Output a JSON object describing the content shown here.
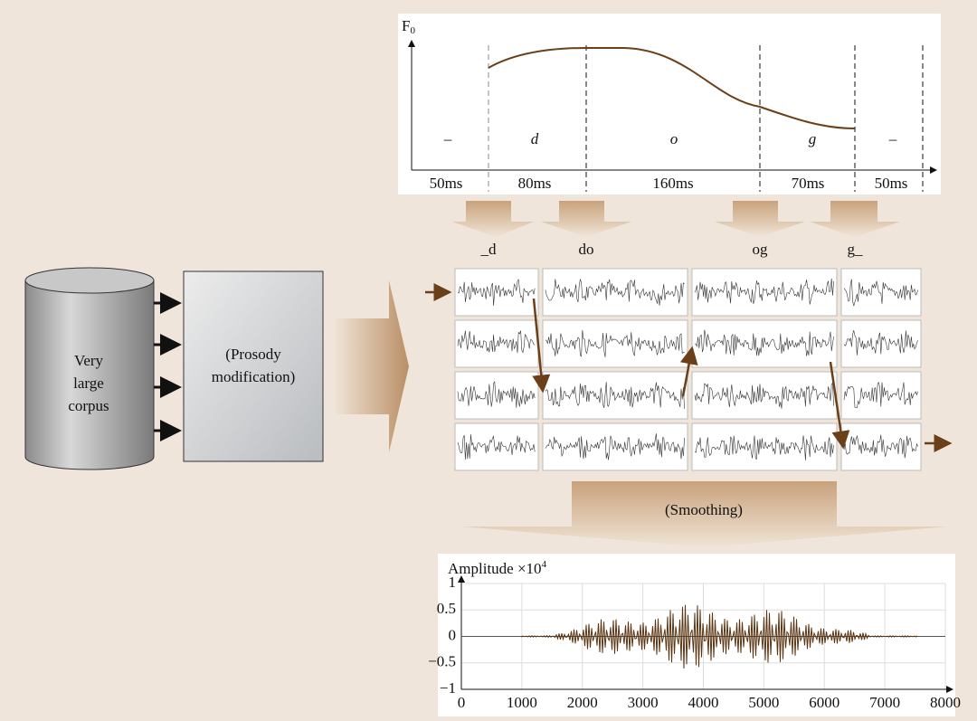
{
  "f0_panel": {
    "axis_label": "F",
    "axis_label_sub": "0",
    "segments": [
      "–",
      "d",
      "o",
      "g",
      "–"
    ],
    "durations": [
      "50ms",
      "80ms",
      "160ms",
      "70ms",
      "50ms"
    ]
  },
  "units": [
    "_d",
    "do",
    "og",
    "g_"
  ],
  "corpus": {
    "lines": [
      "Very",
      "large",
      "corpus"
    ]
  },
  "prosody": {
    "lines": [
      "(Prosody",
      "modification)"
    ]
  },
  "smoothing": "(Smoothing)",
  "amplitude_plot": {
    "ylabel": "Amplitude ×10",
    "ylabel_sup": "4",
    "xlim": [
      0,
      8000
    ],
    "ylim": [
      -1,
      1
    ],
    "xticks": [
      0,
      1000,
      2000,
      3000,
      4000,
      5000,
      6000,
      7000,
      8000
    ],
    "yticks": [
      {
        "value": -1,
        "label": "−1"
      },
      {
        "value": -0.5,
        "label": "−0.5"
      },
      0,
      0.5,
      1
    ]
  }
}
